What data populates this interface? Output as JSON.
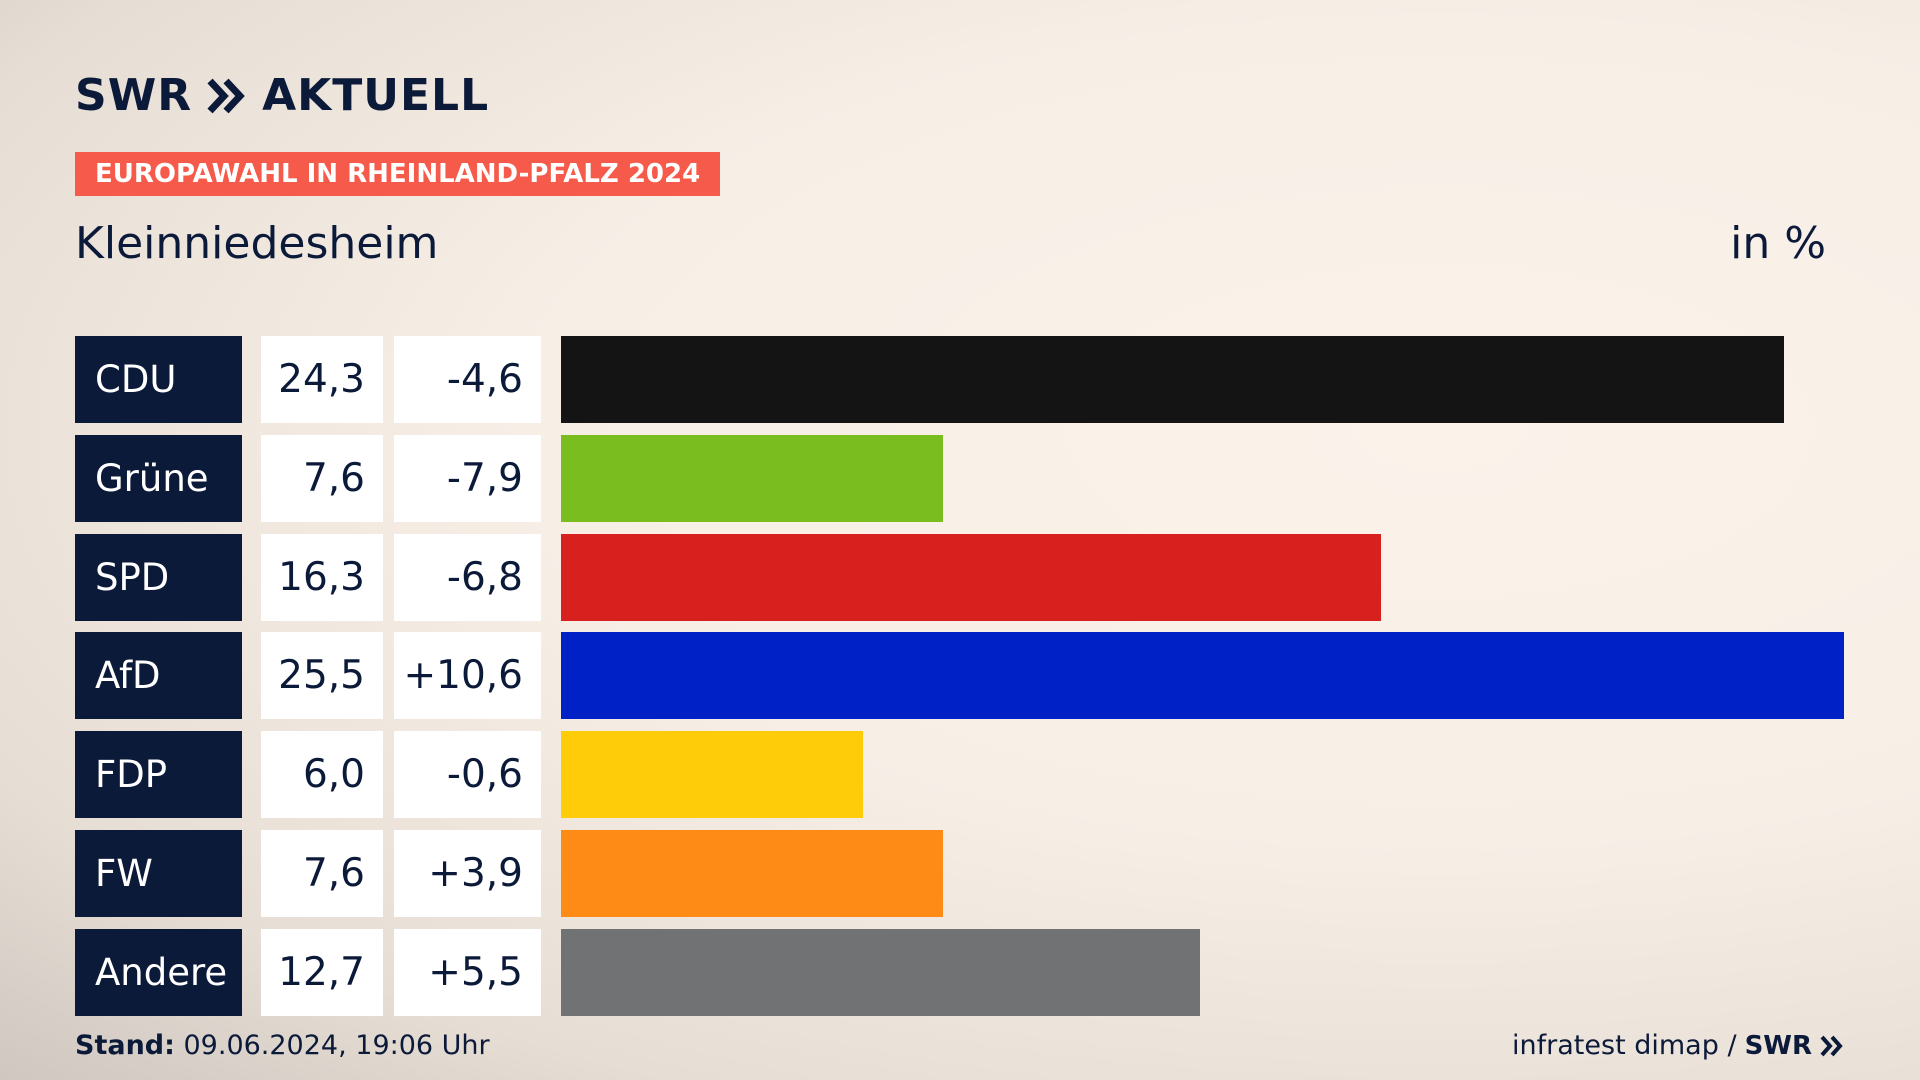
{
  "header": {
    "logo_swr": "SWR",
    "logo_aktuell": "AKTUELL",
    "tag": "EUROPAWAHL IN RHEINLAND-PFALZ 2024",
    "place": "Kleinniedesheim",
    "unit": "in %"
  },
  "footer": {
    "stand_label": "Stand:",
    "stand_value": " 09.06.2024, 19:06 Uhr",
    "source": "infratest dimap /",
    "brand": "SWR"
  },
  "colors": {
    "navy": "#0c1a3a",
    "tag": "#f65a4a"
  },
  "chart_data": {
    "type": "bar",
    "orientation": "horizontal",
    "categories": [
      "CDU",
      "Grüne",
      "SPD",
      "AfD",
      "FDP",
      "FW",
      "Andere"
    ],
    "values": [
      24.3,
      7.6,
      16.3,
      25.5,
      6.0,
      7.6,
      12.7
    ],
    "value_labels": [
      "24,3",
      "7,6",
      "16,3",
      "25,5",
      "6,0",
      "7,6",
      "12,7"
    ],
    "diff_labels": [
      "-4,6",
      "-7,9",
      "-6,8",
      "+10,6",
      "-0,6",
      "+3,9",
      "+5,5"
    ],
    "diffs": [
      -4.6,
      -7.9,
      -6.8,
      10.6,
      -0.6,
      3.9,
      5.5
    ],
    "colors": [
      "#141414",
      "#7abd1e",
      "#d8201f",
      "#0021c6",
      "#ffcc0a",
      "#ff8b17",
      "#717274"
    ],
    "xlim": [
      0,
      25.5
    ],
    "unit": "in %",
    "title": "Kleinniedesheim"
  }
}
